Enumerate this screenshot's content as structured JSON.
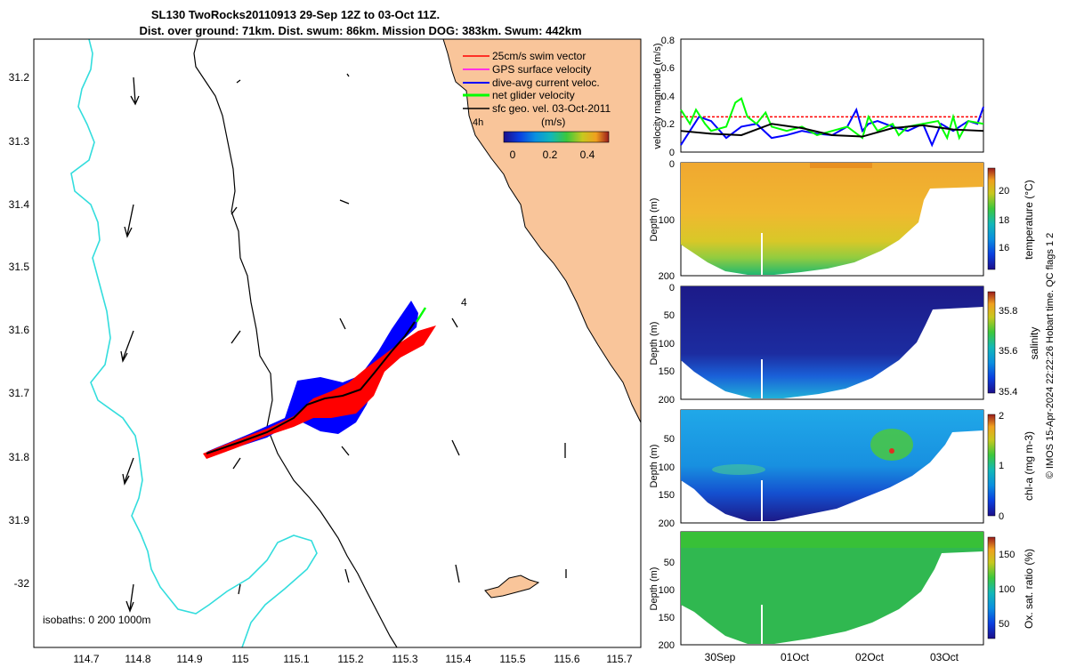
{
  "chart_data": [
    {
      "type": "map",
      "title_line1": "SL130 TwoRocks20110913 29-Sep 12Z to 03-Oct 11Z.",
      "title_line2": "Dist. over ground: 71km. Dist. swum: 86km. Mission DOG: 383km. Swum: 442km",
      "x_ticks": [
        "114.7",
        "114.8",
        "114.9",
        "115",
        "115.1",
        "115.2",
        "115.3",
        "115.4",
        "115.5",
        "115.6",
        "115.7"
      ],
      "y_ticks": [
        "31.2",
        "31.3",
        "31.4",
        "31.5",
        "31.6",
        "31.7",
        "31.8",
        "31.9",
        "-32"
      ],
      "xlim": [
        114.61,
        115.74
      ],
      "ylim": [
        -32.1,
        -31.14
      ],
      "legend": [
        {
          "label": "25cm/s swim vector",
          "color": "#ff0000"
        },
        {
          "label": "GPS surface velocity",
          "color": "#ff00ff"
        },
        {
          "label": "dive-avg current veloc.",
          "color": "#0000ff"
        },
        {
          "label": "net glider velocity",
          "color": "#00ff00"
        },
        {
          "label": "sfc geo. vel. 03-Oct-2011",
          "color": "#000000"
        }
      ],
      "colorbar_label": "(m/s)",
      "colorbar_ticks": [
        "0",
        "0.2",
        "0.4"
      ],
      "isobath_note": "isobaths: 0   200  1000m",
      "annotations": [
        "4h",
        "4"
      ],
      "colors": {
        "land": "#f9c59a",
        "isobath_1000": "#33dddd",
        "swim": "#ff0000",
        "current": "#0000ff",
        "net": "#00ff00",
        "track": "#000000"
      }
    },
    {
      "type": "line",
      "ylabel": "velocity magnitude (m/s)",
      "ylim": [
        0,
        0.8
      ],
      "y_ticks": [
        "0",
        "0.2",
        "0.4",
        "0.6",
        "0.8"
      ],
      "xlim": [
        0,
        100
      ],
      "series": [
        {
          "name": "swim speed",
          "color": "#ff0000",
          "x": [
            0,
            100
          ],
          "values": [
            0.25,
            0.25
          ]
        },
        {
          "name": "dive-avg current",
          "color": "#0000ff",
          "x": [
            0,
            3,
            6,
            10,
            15,
            20,
            25,
            30,
            35,
            40,
            45,
            50,
            55,
            58,
            60,
            62,
            65,
            70,
            75,
            80,
            83,
            86,
            90,
            95,
            98,
            100
          ],
          "values": [
            0.05,
            0.15,
            0.25,
            0.22,
            0.1,
            0.18,
            0.2,
            0.1,
            0.12,
            0.15,
            0.13,
            0.12,
            0.18,
            0.3,
            0.15,
            0.2,
            0.22,
            0.18,
            0.15,
            0.2,
            0.05,
            0.2,
            0.15,
            0.22,
            0.2,
            0.32
          ]
        },
        {
          "name": "net glider velocity",
          "color": "#00ff00",
          "x": [
            0,
            3,
            5,
            8,
            10,
            15,
            18,
            20,
            22,
            25,
            28,
            30,
            35,
            40,
            45,
            50,
            55,
            60,
            62,
            65,
            70,
            72,
            75,
            80,
            85,
            88,
            90,
            92,
            95,
            100
          ],
          "values": [
            0.3,
            0.2,
            0.3,
            0.2,
            0.15,
            0.18,
            0.35,
            0.38,
            0.25,
            0.2,
            0.28,
            0.18,
            0.15,
            0.18,
            0.12,
            0.15,
            0.18,
            0.1,
            0.25,
            0.15,
            0.2,
            0.12,
            0.18,
            0.2,
            0.22,
            0.1,
            0.25,
            0.1,
            0.22,
            0.2
          ]
        },
        {
          "name": "sfc geo. vel.",
          "color": "#000000",
          "x": [
            0,
            10,
            20,
            30,
            40,
            50,
            60,
            70,
            80,
            90,
            100
          ],
          "values": [
            0.15,
            0.13,
            0.12,
            0.2,
            0.17,
            0.12,
            0.11,
            0.17,
            0.19,
            0.16,
            0.15
          ]
        }
      ]
    },
    {
      "type": "heatmap",
      "ylabel": "Depth (m)",
      "y_ticks": [
        "0",
        "100",
        "200"
      ],
      "colorbar_label": "temperature (°C)",
      "colorbar_ticks": [
        "16",
        "18",
        "20"
      ],
      "colorbar_range": [
        15,
        21
      ],
      "colormap": "parula"
    },
    {
      "type": "heatmap",
      "ylabel": "Depth (m)",
      "y_ticks": [
        "0",
        "50",
        "100",
        "150",
        "200"
      ],
      "colorbar_label": "salinity",
      "colorbar_ticks": [
        "35.4",
        "35.6",
        "35.8"
      ],
      "colorbar_range": [
        35.4,
        35.9
      ],
      "colormap": "parula"
    },
    {
      "type": "heatmap",
      "ylabel": "Depth (m)",
      "y_ticks": [
        "50",
        "100",
        "150",
        "200"
      ],
      "colorbar_label": "chl-a (mg m-3)",
      "colorbar_ticks": [
        "0",
        "1",
        "2"
      ],
      "colorbar_range": [
        0,
        2
      ],
      "colormap": "parula"
    },
    {
      "type": "heatmap",
      "ylabel": "Depth (m)",
      "y_ticks": [
        "50",
        "100",
        "150",
        "200"
      ],
      "x_ticks": [
        "30Sep",
        "01Oct",
        "02Oct",
        "03Oct"
      ],
      "colorbar_label": "Ox. sat. ratio (%)",
      "colorbar_ticks": [
        "50",
        "100",
        "150"
      ],
      "colorbar_range": [
        20,
        175
      ],
      "colormap": "parula"
    }
  ],
  "footer": "© IMOS 15-Apr-2024 22:22:26 Hobart time. QC flags 1  2"
}
